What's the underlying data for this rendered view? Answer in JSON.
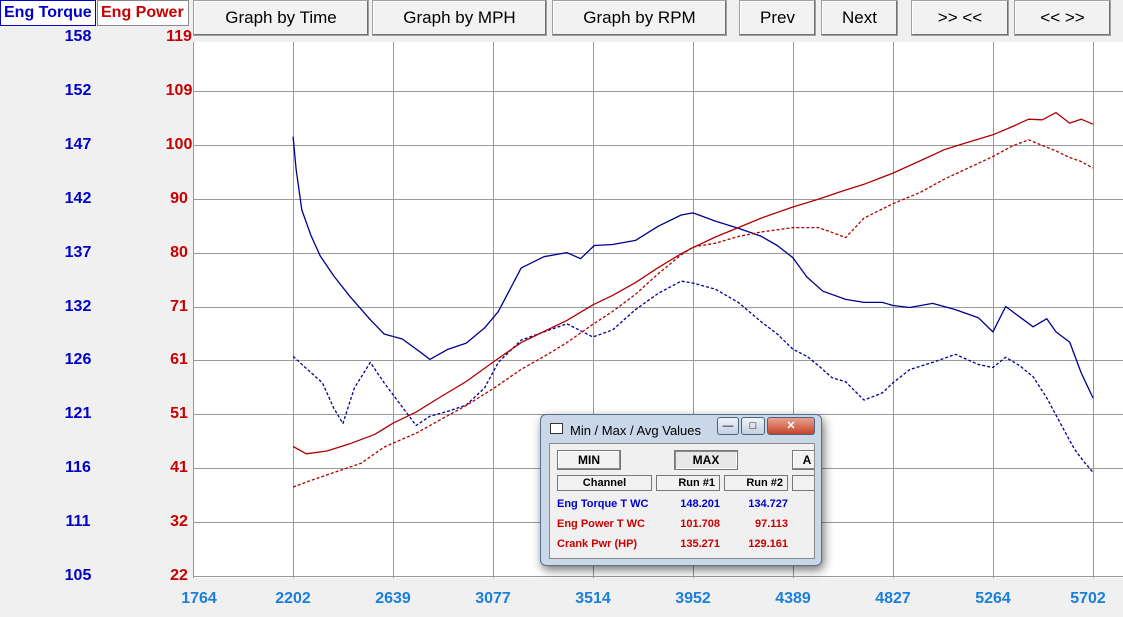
{
  "tabs": {
    "torque_label": "Eng Torque",
    "power_label": "Eng Power"
  },
  "toolbar": {
    "graph_time": "Graph by Time",
    "graph_mph": "Graph by MPH",
    "graph_rpm": "Graph by RPM",
    "prev": "Prev",
    "next": "Next",
    "zoom_in": ">> <<",
    "zoom_out": "<< >>"
  },
  "popup": {
    "title": "Min / Max / Avg Values",
    "min_label": "MIN",
    "max_label": "MAX",
    "avg_label": "A",
    "col_channel": "Channel",
    "col_run1": "Run #1",
    "col_run2": "Run #2",
    "rows": [
      {
        "name": "Eng Torque T WC",
        "run1": "148.201",
        "run2": "134.727",
        "color": "#0000c8"
      },
      {
        "name": "Eng Power T WC",
        "run1": "101.708",
        "run2": "97.113",
        "color": "#c80000"
      },
      {
        "name": "Crank Pwr (HP)",
        "run1": "135.271",
        "run2": "129.161",
        "color": "#c80000"
      }
    ]
  },
  "chart_data": {
    "type": "line",
    "x_ticks": [
      "1764",
      "2202",
      "2639",
      "3077",
      "3514",
      "3952",
      "4389",
      "4827",
      "5264",
      "5702"
    ],
    "xlim": [
      1764,
      5702
    ],
    "y_torque_ticks": [
      "158",
      "152",
      "147",
      "142",
      "137",
      "132",
      "126",
      "121",
      "116",
      "111",
      "105"
    ],
    "y_power_ticks": [
      "119",
      "109",
      "100",
      "90",
      "80",
      "71",
      "61",
      "51",
      "41",
      "32",
      "22"
    ],
    "y_torque_lim": [
      105,
      158
    ],
    "y_power_lim": [
      22,
      119
    ],
    "grid": true,
    "colors": {
      "torque": "#000090",
      "power": "#b00000"
    },
    "series": [
      {
        "name": "Eng Torque",
        "axis": "torque",
        "style": "solid",
        "x": [
          2202,
          2215,
          2240,
          2280,
          2320,
          2380,
          2450,
          2540,
          2600,
          2680,
          2760,
          2800,
          2880,
          2960,
          3040,
          3100,
          3200,
          3300,
          3400,
          3460,
          3520,
          3600,
          3700,
          3800,
          3900,
          3952,
          4050,
          4150,
          4250,
          4320,
          4389,
          4450,
          4520,
          4620,
          4700,
          4780,
          4827,
          4900,
          5000,
          5100,
          5200,
          5264,
          5320,
          5380,
          5440,
          5500,
          5540,
          5600,
          5650,
          5702
        ],
        "y": [
          148.2,
          145,
          141,
          138.5,
          136.5,
          134.5,
          132.5,
          130.2,
          128.8,
          128.3,
          127,
          126.3,
          127.3,
          127.9,
          129.4,
          131,
          135.3,
          136.4,
          136.8,
          136.2,
          137.5,
          137.6,
          138,
          139.4,
          140.5,
          140.7,
          139.9,
          139.2,
          138.4,
          137.5,
          136.3,
          134.4,
          133,
          132.2,
          131.9,
          131.9,
          131.6,
          131.4,
          131.8,
          131.2,
          130.4,
          129,
          131.5,
          130.5,
          129.5,
          130.3,
          129,
          128,
          125,
          122.5
        ]
      },
      {
        "name": "Eng Torque",
        "axis": "torque",
        "style": "dashed",
        "x": [
          2202,
          2260,
          2330,
          2380,
          2420,
          2470,
          2540,
          2600,
          2660,
          2740,
          2800,
          2880,
          2960,
          3040,
          3100,
          3200,
          3300,
          3400,
          3514,
          3600,
          3700,
          3800,
          3900,
          3952,
          4050,
          4150,
          4250,
          4320,
          4389,
          4450,
          4500,
          4560,
          4620,
          4700,
          4780,
          4827,
          4900,
          5000,
          5100,
          5200,
          5264,
          5320,
          5380,
          5440,
          5500,
          5560,
          5620,
          5660,
          5702
        ],
        "y": [
          126.6,
          125.4,
          124,
          121.5,
          120,
          123.5,
          126,
          124,
          122.2,
          119.8,
          120.7,
          121.2,
          121.8,
          123.5,
          126,
          128.2,
          129,
          129.8,
          128.5,
          129.2,
          131.2,
          132.8,
          134,
          133.8,
          133.2,
          131.9,
          130,
          128.8,
          127.3,
          126.6,
          125.7,
          124.5,
          124.1,
          122.3,
          123,
          124,
          125.3,
          126,
          126.8,
          125.8,
          125.5,
          126.5,
          125.7,
          124.6,
          122.5,
          120,
          117.5,
          116.3,
          115.2
        ]
      },
      {
        "name": "Eng Power",
        "axis": "power",
        "style": "solid",
        "x": [
          2202,
          2260,
          2350,
          2450,
          2560,
          2639,
          2740,
          2850,
          2960,
          3077,
          3200,
          3300,
          3400,
          3514,
          3600,
          3700,
          3800,
          3900,
          3952,
          4050,
          4150,
          4250,
          4389,
          4500,
          4600,
          4700,
          4827,
          4950,
          5050,
          5150,
          5264,
          5350,
          5420,
          5480,
          5540,
          5600,
          5650,
          5702
        ],
        "y": [
          45.3,
          44,
          44.5,
          45.8,
          47.5,
          49.5,
          51.5,
          54.3,
          57,
          60.5,
          64,
          66,
          68,
          70.8,
          72.5,
          74.8,
          77.5,
          80,
          81.1,
          83,
          84.7,
          86.4,
          88.4,
          89.8,
          91.2,
          92.5,
          94.5,
          96.8,
          98.7,
          100,
          101.4,
          102.9,
          104.2,
          104.1,
          105.4,
          103.5,
          104.2,
          103.3
        ]
      },
      {
        "name": "Eng Power",
        "axis": "power",
        "style": "dashed",
        "x": [
          2202,
          2280,
          2380,
          2500,
          2600,
          2740,
          2850,
          2960,
          3077,
          3200,
          3300,
          3400,
          3514,
          3600,
          3700,
          3800,
          3900,
          3952,
          4050,
          4150,
          4250,
          4389,
          4500,
          4550,
          4620,
          4700,
          4827,
          4950,
          5050,
          5150,
          5264,
          5350,
          5420,
          5480,
          5540,
          5600,
          5650,
          5702
        ],
        "y": [
          38,
          39.2,
          40.6,
          42.3,
          45.2,
          47.7,
          50.2,
          52.7,
          55.7,
          59.2,
          61.5,
          64,
          67.3,
          69.6,
          72.7,
          76.4,
          79.8,
          81.2,
          81.9,
          83.1,
          83.9,
          84.7,
          84.7,
          84,
          82.9,
          86.4,
          89,
          91.1,
          93.4,
          95.3,
          97.5,
          99.4,
          100.5,
          99.5,
          98.5,
          97.3,
          96.6,
          95.4
        ]
      }
    ]
  }
}
